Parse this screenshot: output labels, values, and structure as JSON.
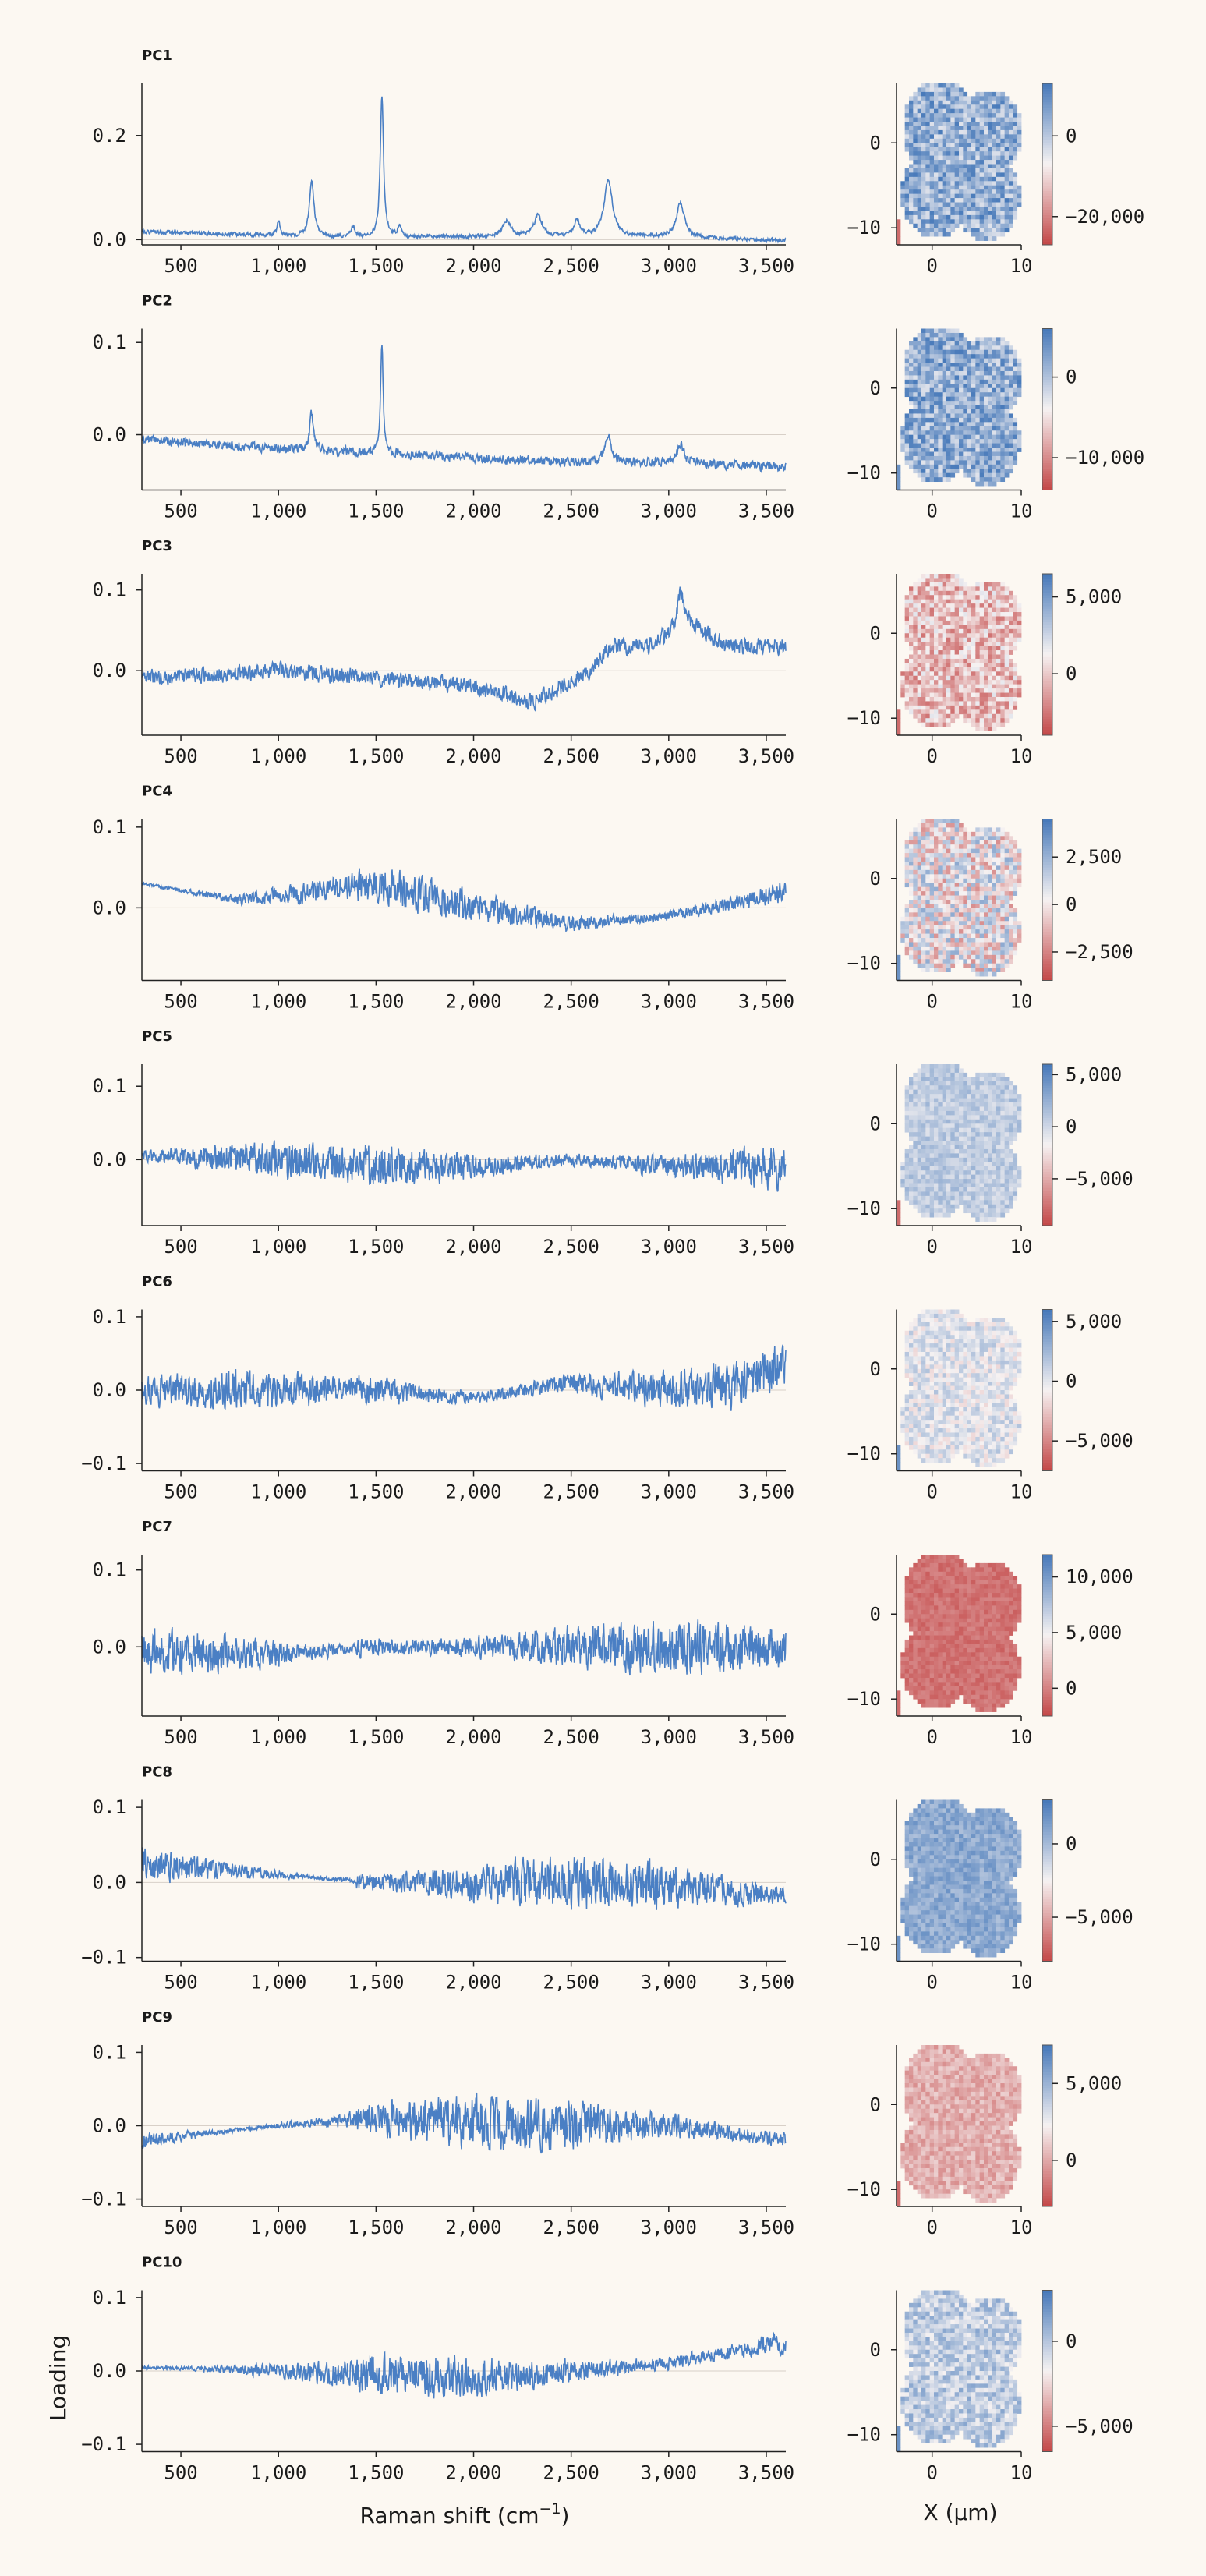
{
  "figure": {
    "ylabel": "Loading",
    "xlabel_main": "Raman shift (cm",
    "xlabel_sup": "−1",
    "xlabel_close": ")",
    "map_xlabel": "X (μm)"
  },
  "chart_data": [
    {
      "type": "line",
      "title": "PC1",
      "series_color": "#4a7fc4",
      "xlim": [
        300,
        3600
      ],
      "ylim": [
        -0.01,
        0.3
      ],
      "xticks": [
        "500",
        "1,000",
        "1,500",
        "2,000",
        "2,500",
        "3,000",
        "3,500"
      ],
      "xtick_values": [
        500,
        1000,
        1500,
        2000,
        2500,
        3000,
        3500
      ],
      "yticks": [
        "0.0",
        "0.2"
      ],
      "ytick_values": [
        0.0,
        0.2
      ],
      "baseline": [
        [
          300,
          0.015
        ],
        [
          800,
          0.01
        ],
        [
          1200,
          0.005
        ],
        [
          1600,
          0.005
        ],
        [
          2000,
          0.005
        ],
        [
          2500,
          0.005
        ],
        [
          3000,
          0.005
        ],
        [
          3600,
          -0.002
        ]
      ],
      "peaks": [
        [
          1170,
          0.11,
          14
        ],
        [
          1530,
          0.27,
          10
        ],
        [
          1620,
          0.02,
          10
        ],
        [
          2170,
          0.03,
          25
        ],
        [
          2330,
          0.04,
          25
        ],
        [
          2530,
          0.03,
          20
        ],
        [
          2690,
          0.11,
          25
        ],
        [
          3060,
          0.065,
          25
        ],
        [
          1000,
          0.03,
          8
        ],
        [
          1380,
          0.02,
          12
        ]
      ],
      "noise": 0.003,
      "seed": 1
    },
    {
      "type": "line",
      "title": "PC2",
      "series_color": "#4a7fc4",
      "xlim": [
        300,
        3600
      ],
      "ylim": [
        -0.06,
        0.115
      ],
      "xticks": [
        "500",
        "1,000",
        "1,500",
        "2,000",
        "2,500",
        "3,000",
        "3,500"
      ],
      "xtick_values": [
        500,
        1000,
        1500,
        2000,
        2500,
        3000,
        3500
      ],
      "yticks": [
        "0.0",
        "0.1"
      ],
      "ytick_values": [
        0.0,
        0.1
      ],
      "baseline": [
        [
          300,
          -0.005
        ],
        [
          1000,
          -0.015
        ],
        [
          1500,
          -0.02
        ],
        [
          2000,
          -0.025
        ],
        [
          2500,
          -0.03
        ],
        [
          3000,
          -0.03
        ],
        [
          3600,
          -0.035
        ]
      ],
      "peaks": [
        [
          1170,
          0.04,
          12
        ],
        [
          1530,
          0.12,
          8
        ],
        [
          2690,
          0.03,
          20
        ],
        [
          3060,
          0.02,
          20
        ]
      ],
      "noise": 0.004,
      "seed": 2
    },
    {
      "type": "line",
      "title": "PC3",
      "series_color": "#4a7fc4",
      "xlim": [
        300,
        3600
      ],
      "ylim": [
        -0.08,
        0.12
      ],
      "xticks": [
        "500",
        "1,000",
        "1,500",
        "2,000",
        "2,500",
        "3,000",
        "3,500"
      ],
      "xtick_values": [
        500,
        1000,
        1500,
        2000,
        2500,
        3000,
        3500
      ],
      "yticks": [
        "0.0",
        "0.1"
      ],
      "ytick_values": [
        0.0,
        0.1
      ],
      "baseline": [
        [
          300,
          -0.01
        ],
        [
          1000,
          0.0
        ],
        [
          1500,
          -0.01
        ],
        [
          2000,
          -0.02
        ],
        [
          2300,
          -0.04
        ],
        [
          2600,
          0.0
        ],
        [
          2700,
          0.03
        ],
        [
          2900,
          0.03
        ],
        [
          3100,
          0.06
        ],
        [
          3300,
          0.03
        ],
        [
          3600,
          0.03
        ]
      ],
      "peaks": [
        [
          3060,
          0.04,
          20
        ]
      ],
      "noise": 0.008,
      "seed": 3
    },
    {
      "type": "line",
      "title": "PC4",
      "series_color": "#4a7fc4",
      "xlim": [
        300,
        3600
      ],
      "ylim": [
        -0.09,
        0.11
      ],
      "xticks": [
        "500",
        "1,000",
        "1,500",
        "2,000",
        "2,500",
        "3,000",
        "3,500"
      ],
      "xtick_values": [
        500,
        1000,
        1500,
        2000,
        2500,
        3000,
        3500
      ],
      "yticks": [
        "0.0",
        "0.1"
      ],
      "ytick_values": [
        0.0,
        0.1
      ],
      "baseline": [
        [
          300,
          0.03
        ],
        [
          800,
          0.01
        ],
        [
          1200,
          0.02
        ],
        [
          1500,
          0.03
        ],
        [
          2000,
          0.0
        ],
        [
          2500,
          -0.02
        ],
        [
          3000,
          -0.01
        ],
        [
          3600,
          0.02
        ]
      ],
      "peaks": [],
      "noise": 0.014,
      "seed": 4
    },
    {
      "type": "line",
      "title": "PC5",
      "series_color": "#4a7fc4",
      "xlim": [
        300,
        3600
      ],
      "ylim": [
        -0.09,
        0.13
      ],
      "xticks": [
        "500",
        "1,000",
        "1,500",
        "2,000",
        "2,500",
        "3,000",
        "3,500"
      ],
      "xtick_values": [
        500,
        1000,
        1500,
        2000,
        2500,
        3000,
        3500
      ],
      "yticks": [
        "0.0",
        "0.1"
      ],
      "ytick_values": [
        0.0,
        0.1
      ],
      "baseline": [
        [
          300,
          0.005
        ],
        [
          1000,
          0.0
        ],
        [
          1500,
          -0.01
        ],
        [
          2000,
          -0.01
        ],
        [
          2500,
          0.0
        ],
        [
          3000,
          -0.01
        ],
        [
          3600,
          -0.01
        ]
      ],
      "peaks": [],
      "noise": 0.02,
      "seed": 5
    },
    {
      "type": "line",
      "title": "PC6",
      "series_color": "#4a7fc4",
      "xlim": [
        300,
        3600
      ],
      "ylim": [
        -0.11,
        0.11
      ],
      "xticks": [
        "500",
        "1,000",
        "1,500",
        "2,000",
        "2,500",
        "3,000",
        "3,500"
      ],
      "xtick_values": [
        500,
        1000,
        1500,
        2000,
        2500,
        3000,
        3500
      ],
      "yticks": [
        "−0.1",
        "0.0",
        "0.1"
      ],
      "ytick_values": [
        -0.1,
        0.0,
        0.1
      ],
      "baseline": [
        [
          300,
          0.0
        ],
        [
          1000,
          0.0
        ],
        [
          1500,
          0.0
        ],
        [
          2000,
          -0.01
        ],
        [
          2500,
          0.01
        ],
        [
          3000,
          0.0
        ],
        [
          3400,
          0.01
        ],
        [
          3600,
          0.04
        ]
      ],
      "peaks": [],
      "noise": 0.02,
      "seed": 6
    },
    {
      "type": "line",
      "title": "PC7",
      "series_color": "#4a7fc4",
      "xlim": [
        300,
        3600
      ],
      "ylim": [
        -0.09,
        0.12
      ],
      "xticks": [
        "500",
        "1,000",
        "1,500",
        "2,000",
        "2,500",
        "3,000",
        "3,500"
      ],
      "xtick_values": [
        500,
        1000,
        1500,
        2000,
        2500,
        3000,
        3500
      ],
      "yticks": [
        "0.0",
        "0.1"
      ],
      "ytick_values": [
        0.0,
        0.1
      ],
      "baseline": [
        [
          300,
          -0.005
        ],
        [
          1000,
          -0.01
        ],
        [
          1500,
          0.0
        ],
        [
          2000,
          0.0
        ],
        [
          2500,
          0.0
        ],
        [
          3000,
          0.0
        ],
        [
          3600,
          0.0
        ]
      ],
      "peaks": [],
      "noise": 0.022,
      "seed": 7
    },
    {
      "type": "line",
      "title": "PC8",
      "series_color": "#4a7fc4",
      "xlim": [
        300,
        3600
      ],
      "ylim": [
        -0.105,
        0.11
      ],
      "xticks": [
        "500",
        "1,000",
        "1,500",
        "2,000",
        "2,500",
        "3,000",
        "3,500"
      ],
      "xtick_values": [
        500,
        1000,
        1500,
        2000,
        2500,
        3000,
        3500
      ],
      "yticks": [
        "−0.1",
        "0.0",
        "0.1"
      ],
      "ytick_values": [
        -0.1,
        0.0,
        0.1
      ],
      "baseline": [
        [
          300,
          0.025
        ],
        [
          1000,
          0.01
        ],
        [
          1500,
          0.0
        ],
        [
          2000,
          0.0
        ],
        [
          2500,
          0.0
        ],
        [
          3000,
          -0.005
        ],
        [
          3600,
          -0.02
        ]
      ],
      "peaks": [],
      "noise": 0.022,
      "seed": 8
    },
    {
      "type": "line",
      "title": "PC9",
      "series_color": "#4a7fc4",
      "xlim": [
        300,
        3600
      ],
      "ylim": [
        -0.11,
        0.11
      ],
      "xticks": [
        "500",
        "1,000",
        "1,500",
        "2,000",
        "2,500",
        "3,000",
        "3,500"
      ],
      "xtick_values": [
        500,
        1000,
        1500,
        2000,
        2500,
        3000,
        3500
      ],
      "yticks": [
        "−0.1",
        "0.0",
        "0.1"
      ],
      "ytick_values": [
        -0.1,
        0.0,
        0.1
      ],
      "baseline": [
        [
          300,
          -0.02
        ],
        [
          1000,
          0.0
        ],
        [
          1500,
          0.01
        ],
        [
          2000,
          0.005
        ],
        [
          2500,
          0.0
        ],
        [
          3000,
          0.0
        ],
        [
          3600,
          -0.02
        ]
      ],
      "peaks": [],
      "noise": 0.022,
      "seed": 9
    },
    {
      "type": "line",
      "title": "PC10",
      "series_color": "#4a7fc4",
      "xlim": [
        300,
        3600
      ],
      "ylim": [
        -0.11,
        0.11
      ],
      "xticks": [
        "500",
        "1,000",
        "1,500",
        "2,000",
        "2,500",
        "3,000",
        "3,500"
      ],
      "xtick_values": [
        500,
        1000,
        1500,
        2000,
        2500,
        3000,
        3500
      ],
      "yticks": [
        "−0.1",
        "0.0",
        "0.1"
      ],
      "ytick_values": [
        -0.1,
        0.0,
        0.1
      ],
      "baseline": [
        [
          300,
          0.005
        ],
        [
          1000,
          0.0
        ],
        [
          1500,
          -0.005
        ],
        [
          2000,
          -0.01
        ],
        [
          2500,
          0.0
        ],
        [
          3000,
          0.01
        ],
        [
          3600,
          0.04
        ]
      ],
      "peaks": [],
      "noise": 0.018,
      "seed": 10
    },
    {
      "type": "heatmap",
      "title": "",
      "xticks": [
        "0",
        "10"
      ],
      "yticks": [
        "0",
        "−10"
      ],
      "colorbar_ticks": [
        "0",
        "−20,000"
      ],
      "colorbar_values": [
        0,
        -20000
      ],
      "vmin": -27000,
      "vmax": 13000,
      "pattern": "blue-mix",
      "seed": 11
    },
    {
      "type": "heatmap",
      "title": "",
      "xticks": [
        "0",
        "10"
      ],
      "yticks": [
        "0",
        "−10"
      ],
      "colorbar_ticks": [
        "0",
        "−10,000"
      ],
      "colorbar_values": [
        0,
        -10000
      ],
      "vmin": -14000,
      "vmax": 6000,
      "pattern": "blue-mix",
      "seed": 12
    },
    {
      "type": "heatmap",
      "title": "",
      "xticks": [
        "0",
        "10"
      ],
      "yticks": [
        "0",
        "−10"
      ],
      "colorbar_ticks": [
        "5,000",
        "0"
      ],
      "colorbar_values": [
        5000,
        0
      ],
      "vmin": -4000,
      "vmax": 6500,
      "pattern": "red-mix",
      "seed": 13
    },
    {
      "type": "heatmap",
      "title": "",
      "xticks": [
        "0",
        "10"
      ],
      "yticks": [
        "0",
        "−10"
      ],
      "colorbar_ticks": [
        "2,500",
        "0",
        "−2,500"
      ],
      "colorbar_values": [
        2500,
        0,
        -2500
      ],
      "vmin": -4000,
      "vmax": 4500,
      "pattern": "balanced",
      "seed": 14
    },
    {
      "type": "heatmap",
      "title": "",
      "xticks": [
        "0",
        "10"
      ],
      "yticks": [
        "0",
        "−10"
      ],
      "colorbar_ticks": [
        "5,000",
        "0",
        "−5,000"
      ],
      "colorbar_values": [
        5000,
        0,
        -5000
      ],
      "vmin": -9500,
      "vmax": 6000,
      "pattern": "light-blue",
      "seed": 15
    },
    {
      "type": "heatmap",
      "title": "",
      "xticks": [
        "0",
        "10"
      ],
      "yticks": [
        "0",
        "−10"
      ],
      "colorbar_ticks": [
        "5,000",
        "0",
        "−5,000"
      ],
      "colorbar_values": [
        5000,
        0,
        -5000
      ],
      "vmin": -7500,
      "vmax": 6000,
      "pattern": "pale",
      "seed": 16
    },
    {
      "type": "heatmap",
      "title": "",
      "xticks": [
        "0",
        "10"
      ],
      "yticks": [
        "0",
        "−10"
      ],
      "colorbar_ticks": [
        "10,000",
        "5,000",
        "0"
      ],
      "colorbar_values": [
        10000,
        5000,
        0
      ],
      "vmin": -2500,
      "vmax": 12000,
      "pattern": "red-solid",
      "seed": 17
    },
    {
      "type": "heatmap",
      "title": "",
      "xticks": [
        "0",
        "10"
      ],
      "yticks": [
        "0",
        "−10"
      ],
      "colorbar_ticks": [
        "0",
        "−5,000"
      ],
      "colorbar_values": [
        0,
        -5000
      ],
      "vmin": -8000,
      "vmax": 3000,
      "pattern": "blue-solid",
      "seed": 18
    },
    {
      "type": "heatmap",
      "title": "",
      "xticks": [
        "0",
        "10"
      ],
      "yticks": [
        "0",
        "−10"
      ],
      "colorbar_ticks": [
        "5,000",
        "0"
      ],
      "colorbar_values": [
        5000,
        0
      ],
      "vmin": -3000,
      "vmax": 7500,
      "pattern": "red-light",
      "seed": 19
    },
    {
      "type": "heatmap",
      "title": "",
      "xticks": [
        "0",
        "10"
      ],
      "yticks": [
        "0",
        "−10"
      ],
      "colorbar_ticks": [
        "0",
        "−5,000"
      ],
      "colorbar_values": [
        0,
        -5000
      ],
      "vmin": -6500,
      "vmax": 3000,
      "pattern": "blue-light",
      "seed": 20
    }
  ]
}
